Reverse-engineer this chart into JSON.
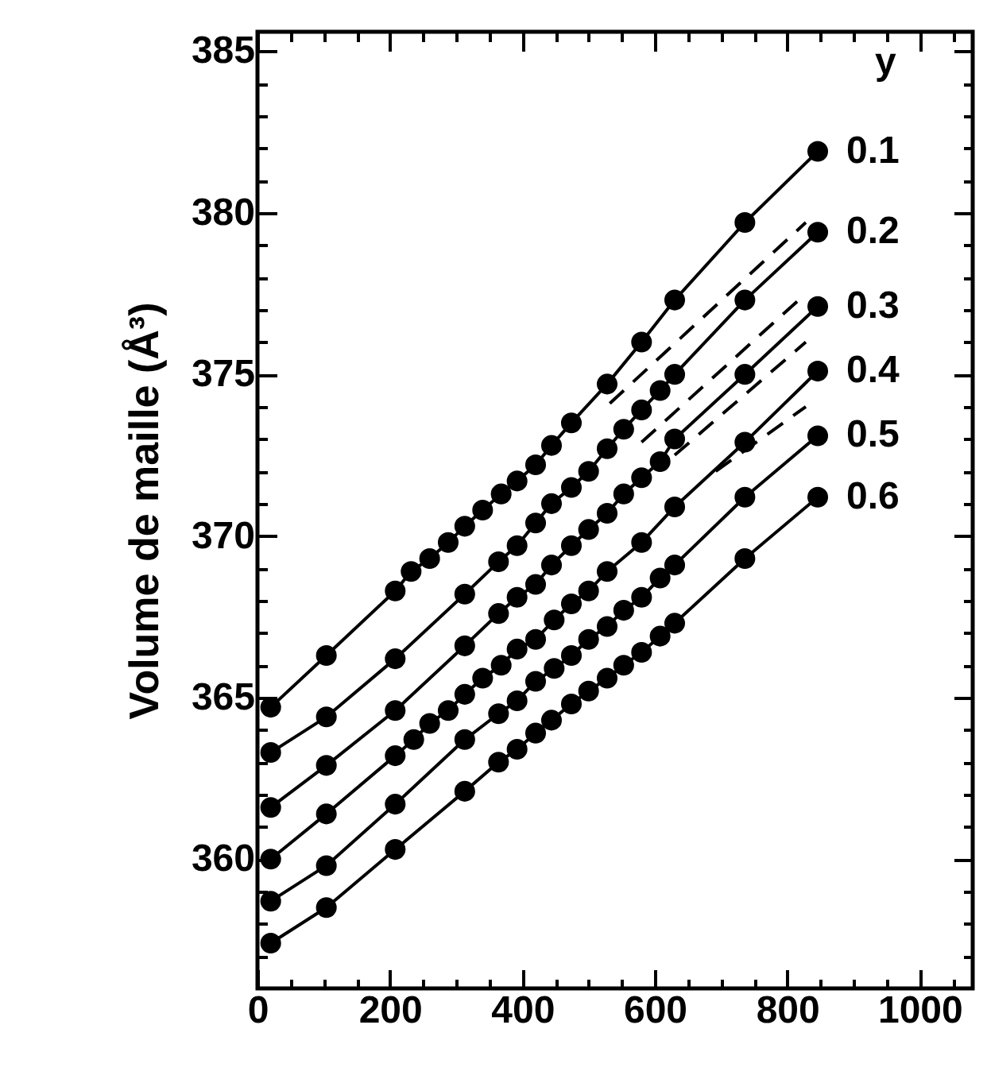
{
  "chart_data": {
    "type": "line",
    "ylabel": "Volume de maille (Å³)",
    "legend_title": "y",
    "legend": "right",
    "grid": false,
    "marker": "circle",
    "line_style": "solid",
    "xlim": [
      0,
      1080
    ],
    "ylim": [
      356,
      385.6
    ],
    "xticks": [
      0,
      {
        "value": 50,
        "label": null
      },
      200,
      {
        "value": 100,
        "label": null
      },
      {
        "value": 150,
        "label": null
      },
      {
        "value": 250,
        "label": null
      },
      {
        "value": 300,
        "label": null
      },
      {
        "value": 350,
        "label": null
      },
      400,
      {
        "value": 450,
        "label": null
      },
      {
        "value": 500,
        "label": null
      },
      {
        "value": 550,
        "label": null
      },
      600,
      {
        "value": 650,
        "label": null
      },
      {
        "value": 700,
        "label": null
      },
      {
        "value": 750,
        "label": null
      },
      800,
      {
        "value": 850,
        "label": null
      },
      {
        "value": 900,
        "label": null
      },
      {
        "value": 950,
        "label": null
      },
      1000,
      {
        "value": 1050,
        "label": null
      }
    ],
    "yticks": [
      {
        "value": 357,
        "label": null
      },
      {
        "value": 358,
        "label": null
      },
      {
        "value": 359,
        "label": null
      },
      360,
      {
        "value": 361,
        "label": null
      },
      {
        "value": 362,
        "label": null
      },
      {
        "value": 363,
        "label": null
      },
      {
        "value": 364,
        "label": null
      },
      365,
      {
        "value": 366,
        "label": null
      },
      {
        "value": 367,
        "label": null
      },
      {
        "value": 368,
        "label": null
      },
      {
        "value": 369,
        "label": null
      },
      370,
      {
        "value": 371,
        "label": null
      },
      {
        "value": 372,
        "label": null
      },
      {
        "value": 373,
        "label": null
      },
      {
        "value": 374,
        "label": null
      },
      375,
      {
        "value": 376,
        "label": null
      },
      {
        "value": 377,
        "label": null
      },
      {
        "value": 378,
        "label": null
      },
      {
        "value": 379,
        "label": null
      },
      380,
      {
        "value": 381,
        "label": null
      },
      {
        "value": 382,
        "label": null
      },
      {
        "value": 383,
        "label": null
      },
      {
        "value": 384,
        "label": null
      },
      385
    ],
    "series": [
      {
        "name": "0.1",
        "color": "#000000",
        "x": [
          20,
          104,
          208,
          232,
          260,
          288,
          313,
          340,
          368,
          392,
          420,
          444,
          474,
          528,
          580,
          630,
          736,
          846
        ],
        "values": [
          364.7,
          366.3,
          368.3,
          368.9,
          369.3,
          369.8,
          370.3,
          370.8,
          371.3,
          371.7,
          372.2,
          372.8,
          373.5,
          374.7,
          376.0,
          377.3,
          379.7,
          381.9
        ]
      },
      {
        "name": "0.2",
        "color": "#000000",
        "x": [
          20,
          104,
          208,
          313,
          364,
          392,
          420,
          444,
          474,
          500,
          528,
          553,
          580,
          608,
          630,
          736,
          846
        ],
        "values": [
          363.3,
          364.4,
          366.2,
          368.2,
          369.2,
          369.7,
          370.4,
          371.0,
          371.5,
          372.0,
          372.7,
          373.3,
          373.9,
          374.5,
          375.0,
          377.3,
          379.4
        ]
      },
      {
        "name": "0.3",
        "color": "#000000",
        "x": [
          20,
          104,
          208,
          313,
          364,
          392,
          420,
          444,
          474,
          500,
          528,
          553,
          580,
          608,
          630,
          736,
          846
        ],
        "values": [
          361.6,
          362.9,
          364.6,
          366.6,
          367.6,
          368.1,
          368.5,
          369.1,
          369.7,
          370.2,
          370.7,
          371.3,
          371.8,
          372.3,
          373.0,
          375.0,
          377.1
        ]
      },
      {
        "name": "0.4",
        "color": "#000000",
        "x": [
          20,
          104,
          208,
          236,
          260,
          288,
          313,
          340,
          368,
          392,
          420,
          448,
          474,
          500,
          528,
          580,
          630,
          736,
          846
        ],
        "values": [
          360.0,
          361.4,
          363.2,
          363.7,
          364.2,
          364.6,
          365.1,
          365.6,
          366.0,
          366.5,
          366.8,
          367.4,
          367.9,
          368.3,
          368.9,
          369.8,
          370.9,
          372.9,
          375.1
        ]
      },
      {
        "name": "0.5",
        "color": "#000000",
        "x": [
          20,
          104,
          208,
          313,
          364,
          392,
          420,
          448,
          474,
          500,
          528,
          553,
          580,
          608,
          630,
          736,
          846
        ],
        "values": [
          358.7,
          359.8,
          361.7,
          363.7,
          364.5,
          364.9,
          365.5,
          365.9,
          366.3,
          366.8,
          367.2,
          367.7,
          368.1,
          368.7,
          369.1,
          371.2,
          373.1
        ]
      },
      {
        "name": "0.6",
        "color": "#000000",
        "x": [
          20,
          104,
          208,
          313,
          364,
          392,
          420,
          444,
          474,
          500,
          528,
          553,
          580,
          608,
          630,
          736,
          846
        ],
        "values": [
          357.4,
          358.5,
          360.3,
          362.1,
          363.0,
          363.4,
          363.9,
          364.3,
          364.8,
          365.2,
          365.6,
          366.0,
          366.4,
          366.9,
          367.3,
          369.3,
          371.2
        ]
      },
      {
        "color": "#000000",
        "marker": "none",
        "line_style": "dashed",
        "x": [
          532,
          828
        ],
        "values": [
          374.1,
          379.7
        ]
      },
      {
        "color": "#000000",
        "marker": "none",
        "line_style": "dashed",
        "x": [
          580,
          828
        ],
        "values": [
          372.9,
          377.5
        ]
      },
      {
        "color": "#000000",
        "marker": "none",
        "line_style": "dashed",
        "x": [
          630,
          828
        ],
        "values": [
          372.5,
          376.0
        ]
      },
      {
        "color": "#000000",
        "marker": "none",
        "line_style": "dashed",
        "x": [
          692,
          828
        ],
        "values": [
          372.0,
          374.0
        ]
      }
    ]
  }
}
